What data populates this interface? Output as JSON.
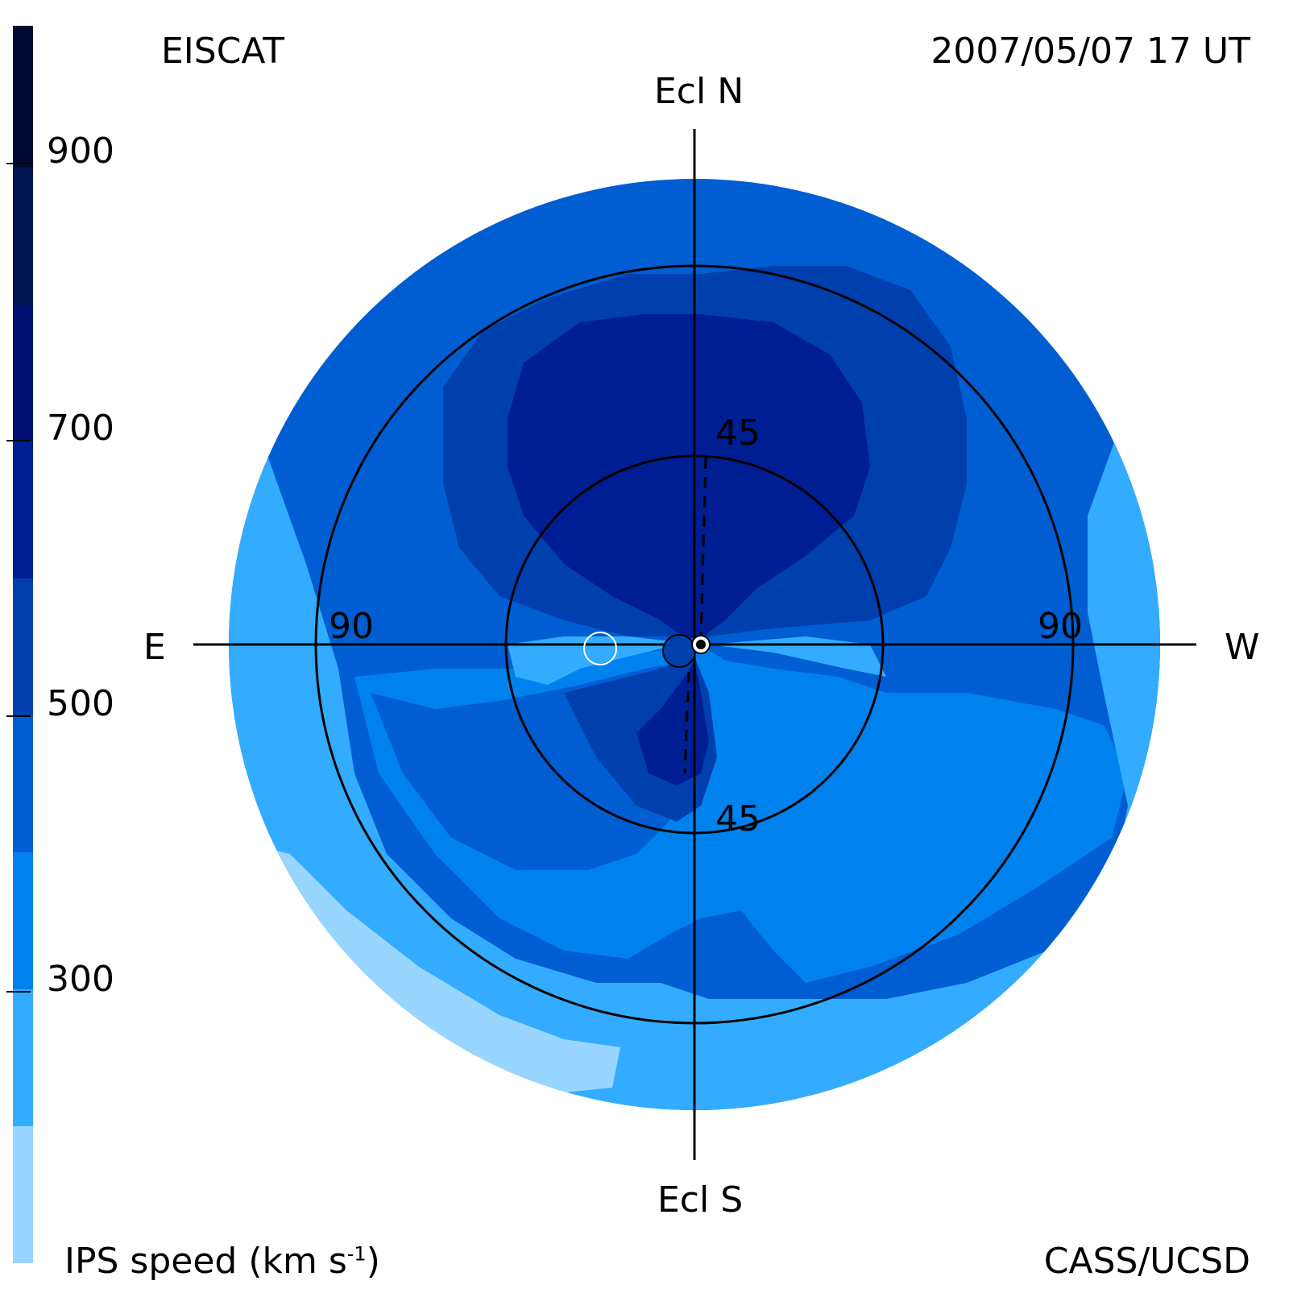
{
  "header": {
    "left_title": "EISCAT",
    "right_title": "2007/05/07 17 UT"
  },
  "footer": {
    "left_label_main": "IPS speed (km s",
    "left_label_sup": "-1",
    "left_label_end": ")",
    "right_credit": "CASS/UCSD"
  },
  "orientation": {
    "north": "Ecl N",
    "south": "Ecl S",
    "east": "E",
    "west": "W"
  },
  "ring_labels": {
    "inner_top": "45",
    "inner_bottom": "45",
    "outer_left": "90",
    "outer_right": "90"
  },
  "colorbar": {
    "ticks": [
      "900",
      "700",
      "500",
      "300"
    ],
    "colors": [
      "#99d6ff",
      "#33acff",
      "#0082ee",
      "#005ed2",
      "#003fae",
      "#001e93",
      "#000f72",
      "#001450",
      "#000a30"
    ]
  },
  "map_colors": {
    "c1": "#99d6ff",
    "c2": "#33acff",
    "c3": "#0082ee",
    "c4": "#005ed2",
    "c5": "#003fae",
    "c6": "#001e93",
    "c7": "#000f72"
  }
}
